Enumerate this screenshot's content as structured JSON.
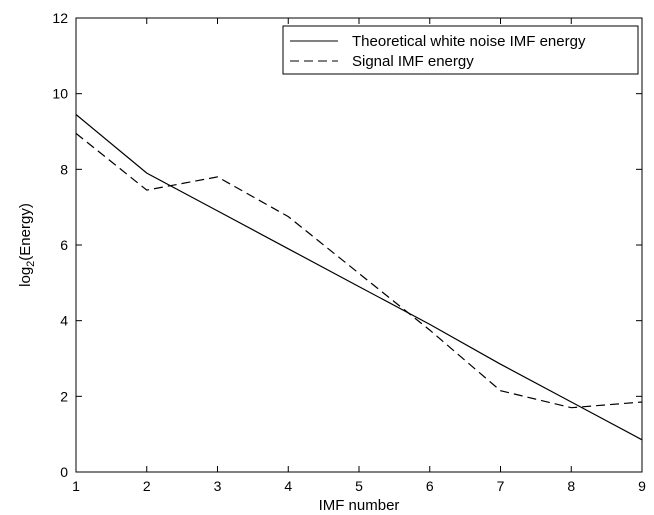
{
  "chart_data": {
    "type": "line",
    "title": "",
    "xlabel": "IMF number",
    "ylabel": {
      "main": "log",
      "sub": "2",
      "rest": "(Energy)"
    },
    "xlim": [
      1,
      9
    ],
    "ylim": [
      0,
      12
    ],
    "xticks": [
      "1",
      "2",
      "3",
      "4",
      "5",
      "6",
      "7",
      "8",
      "9"
    ],
    "yticks": [
      "0",
      "2",
      "4",
      "6",
      "8",
      "10",
      "12"
    ],
    "grid": false,
    "legend_position": "top-right",
    "series": [
      {
        "name": "Theoretical white noise IMF energy",
        "style": "solid",
        "color": "#000000",
        "x": [
          1,
          2,
          3,
          4,
          5,
          6,
          7,
          8,
          9
        ],
        "y": [
          9.45,
          7.9,
          6.9,
          5.9,
          4.9,
          3.9,
          2.85,
          1.85,
          0.85
        ]
      },
      {
        "name": "Signal IMF energy",
        "style": "dashed",
        "color": "#000000",
        "x": [
          1,
          2,
          3,
          4,
          5,
          6,
          7,
          8,
          9
        ],
        "y": [
          8.95,
          7.45,
          7.8,
          6.75,
          5.25,
          3.75,
          2.15,
          1.7,
          1.85
        ]
      }
    ]
  }
}
